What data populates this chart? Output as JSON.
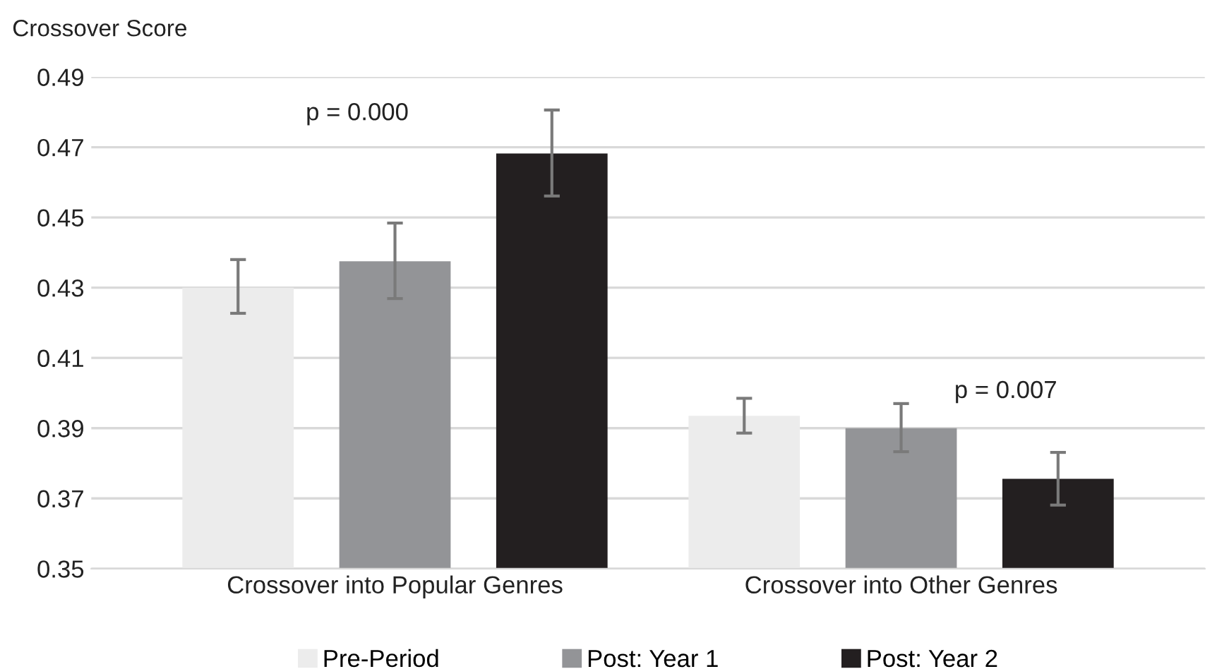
{
  "chart_data": {
    "type": "bar",
    "ylabel": "Crossover Score",
    "categories": [
      "Crossover into Popular Genres",
      "Crossover into Other Genres"
    ],
    "series": [
      {
        "name": "Pre-Period",
        "color": "#ececec",
        "values": [
          0.43,
          0.3935
        ],
        "errors": [
          [
            0.4227,
            0.438
          ],
          [
            0.3886,
            0.3985
          ]
        ]
      },
      {
        "name": "Post: Year 1",
        "color": "#939497",
        "values": [
          0.4375,
          0.39
        ],
        "errors": [
          [
            0.4269,
            0.4484
          ],
          [
            0.3833,
            0.397
          ]
        ]
      },
      {
        "name": "Post: Year 2",
        "color": "#231f20",
        "values": [
          0.4682,
          0.3756
        ],
        "errors": [
          [
            0.4561,
            0.4806
          ],
          [
            0.3681,
            0.3831
          ]
        ]
      }
    ],
    "annotations": [
      "p = 0.000",
      "p = 0.007"
    ],
    "ylim": [
      0.35,
      0.49
    ],
    "yticks": [
      0.35,
      0.37,
      0.39,
      0.41,
      0.43,
      0.45,
      0.47,
      0.49
    ],
    "grid": "y",
    "legend": "bottom"
  }
}
